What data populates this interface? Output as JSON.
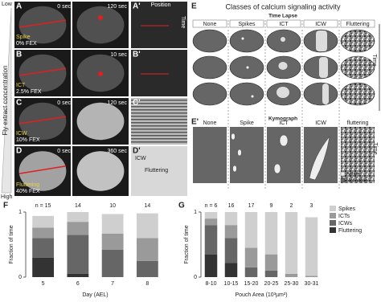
{
  "panels": {
    "gradient": {
      "low": "Low",
      "high": "High",
      "label": "Fly extract concentration"
    },
    "rows": [
      {
        "letter": "A",
        "times": [
          "0 sec",
          "120 sec"
        ],
        "activity": "Spike",
        "fex": "0% FEX",
        "kymo": "A'"
      },
      {
        "letter": "B",
        "times": [
          "10 sec"
        ],
        "activity": "ICT",
        "fex": "2.5% FEX",
        "kymo": "B'"
      },
      {
        "letter": "C",
        "times": [
          "0 sec",
          "120 sec"
        ],
        "activity": "ICW",
        "fex": "10% FEX",
        "kymo": "C'"
      },
      {
        "letter": "D",
        "times": [
          "0 sec",
          "360 sec"
        ],
        "activity": "Fluttering",
        "fex": "40% FEX",
        "kymo": "D'"
      }
    ],
    "kymo_axes": {
      "position": "Position",
      "time": "Time"
    },
    "kymo_d": {
      "icw": "ICW",
      "fluttering": "Fluttering"
    }
  },
  "schematic": {
    "letter": "E",
    "title": "Classes of calcium signaling activity",
    "time_lapse": "Time Lapse",
    "classes": [
      "None",
      "Spikes",
      "ICT",
      "ICW",
      "Fluttering"
    ],
    "time": "Time",
    "kymo_letter": "E'",
    "kymograph": "Kymograph",
    "kymo_classes": [
      "None",
      "Spike",
      "ICT",
      "ICW",
      "fluttering"
    ],
    "kymo_time": "Time",
    "legend": [
      "Active",
      "Not active"
    ]
  },
  "chart_data": [
    {
      "type": "bar",
      "stacked": true,
      "label": "F",
      "ylabel": "Fraction of time",
      "xlabel": "Day (AEL)",
      "categories": [
        "5",
        "6",
        "7",
        "8"
      ],
      "n_labels": [
        "n = 15",
        "14",
        "10",
        "14"
      ],
      "ylim": [
        0,
        1
      ],
      "yticks": [
        0,
        1
      ],
      "series": [
        {
          "name": "Spikes",
          "color": "#cfcfcf",
          "values": [
            0.18,
            0.15,
            0.3,
            0.38
          ]
        },
        {
          "name": "ICTs",
          "color": "#9a9a9a",
          "values": [
            0.16,
            0.2,
            0.25,
            0.35
          ]
        },
        {
          "name": "ICWs",
          "color": "#666666",
          "values": [
            0.3,
            0.6,
            0.42,
            0.25
          ]
        },
        {
          "name": "Fluttering",
          "color": "#333333",
          "values": [
            0.3,
            0.05,
            0,
            0
          ]
        }
      ]
    },
    {
      "type": "bar",
      "stacked": true,
      "label": "G",
      "ylabel": "Fraction of time",
      "xlabel": "Pouch Area (10³µm²)",
      "categories": [
        "8-10",
        "10-15",
        "15-20",
        "20-25",
        "25-30",
        "30-31"
      ],
      "n_labels": [
        "n = 6",
        "16",
        "17",
        "9",
        "2",
        "3"
      ],
      "ylim": [
        0,
        1
      ],
      "yticks": [
        0,
        1
      ],
      "legend": "upper right",
      "series": [
        {
          "name": "Spikes",
          "color": "#cfcfcf",
          "values": [
            0.1,
            0.2,
            0.55,
            0.65,
            0.95,
            0.9
          ]
        },
        {
          "name": "ICTs",
          "color": "#9a9a9a",
          "values": [
            0.1,
            0.2,
            0.3,
            0.25,
            0.05,
            0.02
          ]
        },
        {
          "name": "ICWs",
          "color": "#666666",
          "values": [
            0.45,
            0.38,
            0.15,
            0.1,
            0,
            0
          ]
        },
        {
          "name": "Fluttering",
          "color": "#333333",
          "values": [
            0.35,
            0.22,
            0,
            0,
            0,
            0
          ]
        }
      ]
    }
  ]
}
